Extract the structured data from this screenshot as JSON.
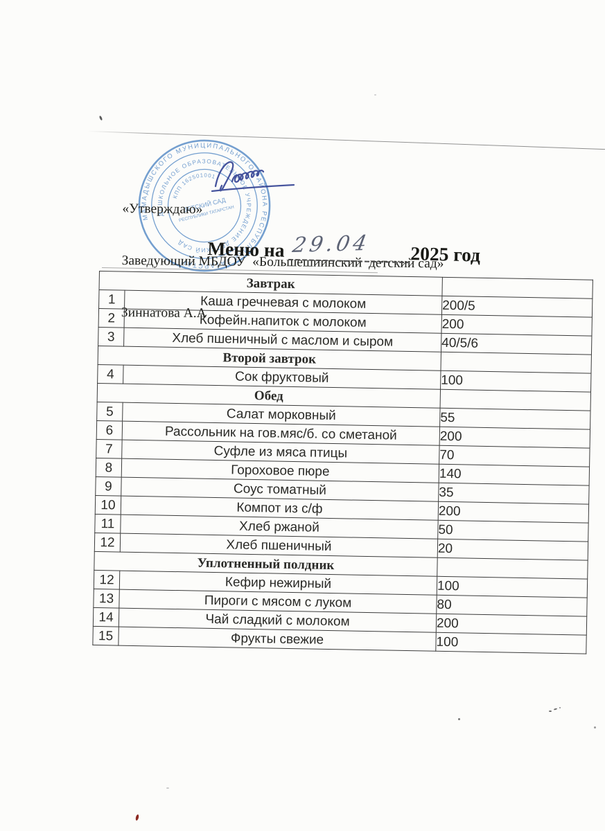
{
  "approval_block": {
    "line1": "«Утверждаю»",
    "line2": "Заведующий МБДОУ  «Большешиинский  детский сад»",
    "line3": "Зиннатова А.А"
  },
  "title": {
    "prefix": "Меню на",
    "date_handwritten": "29.04",
    "year": "2025 год"
  },
  "stamp": {
    "color": "#4f86c4",
    "ring_outer": "МАМАДЫШСКОГО МУНИЦИПАЛЬНОГО РАЙОНА  РЕСПУБЛИКИ ТАТАРСТАН ",
    "ring_inner": "ДОШКОЛЬНОЕ ОБРАЗОВАТЕЛЬНОЕ УЧРЕЖДЕНИЕ  ДЕТСКИЙ САД ",
    "arc_kpp": "КПП 162501001",
    "center_line1": "ДЕТСКИЙ САД",
    "center_line2": "РЕСПУБЛИКИ ТАТАРСТАН"
  },
  "menu_table": {
    "rows": [
      {
        "type": "section",
        "label": "Завтрак"
      },
      {
        "type": "item",
        "num": "1",
        "dish": "Каша гречневая с молоком",
        "amount": "200/5"
      },
      {
        "type": "item",
        "num": "2",
        "dish": "Кофейн.напиток с молоком",
        "amount": "200"
      },
      {
        "type": "item",
        "num": "3",
        "dish": "Хлеб пшеничный с маслом и сыром",
        "amount": "40/5/6"
      },
      {
        "type": "section",
        "label": "Второй завтрок"
      },
      {
        "type": "item",
        "num": "4",
        "dish": "Сок фруктовый",
        "amount": "100"
      },
      {
        "type": "section",
        "label": "Обед"
      },
      {
        "type": "item",
        "num": "5",
        "dish": "Салат морковный",
        "amount": "55"
      },
      {
        "type": "item",
        "num": "6",
        "dish": "Рассольник на гов.мяс/б. со сметаной",
        "amount": "200"
      },
      {
        "type": "item",
        "num": "7",
        "dish": "Суфле из мяса птицы",
        "amount": "70"
      },
      {
        "type": "item",
        "num": "8",
        "dish": "Гороховое пюре",
        "amount": "140"
      },
      {
        "type": "item",
        "num": "9",
        "dish": "Соус томатный",
        "amount": "35"
      },
      {
        "type": "item",
        "num": "10",
        "dish": "Компот из с/ф",
        "amount": "200"
      },
      {
        "type": "item",
        "num": "11",
        "dish": "Хлеб ржаной",
        "amount": "50"
      },
      {
        "type": "item",
        "num": "12",
        "dish": "Хлеб пшеничный",
        "amount": "20"
      },
      {
        "type": "section",
        "label": "Уплотненный полдник"
      },
      {
        "type": "item",
        "num": "12",
        "dish": "Кефир нежирный",
        "amount": "100"
      },
      {
        "type": "item",
        "num": "13",
        "dish": "Пироги с мясом с луком",
        "amount": "80"
      },
      {
        "type": "item",
        "num": "14",
        "dish": "Чай сладкий с молоком",
        "amount": "200"
      },
      {
        "type": "item",
        "num": "15",
        "dish": "Фрукты свежие",
        "amount": "100"
      }
    ]
  },
  "colors": {
    "stamp_blue": "#4f86c4",
    "signature_ink": "#2e3d91",
    "handwriting_ink": "#50576a",
    "table_line": "#3b3b3b",
    "paper": "#fcfcfa"
  }
}
